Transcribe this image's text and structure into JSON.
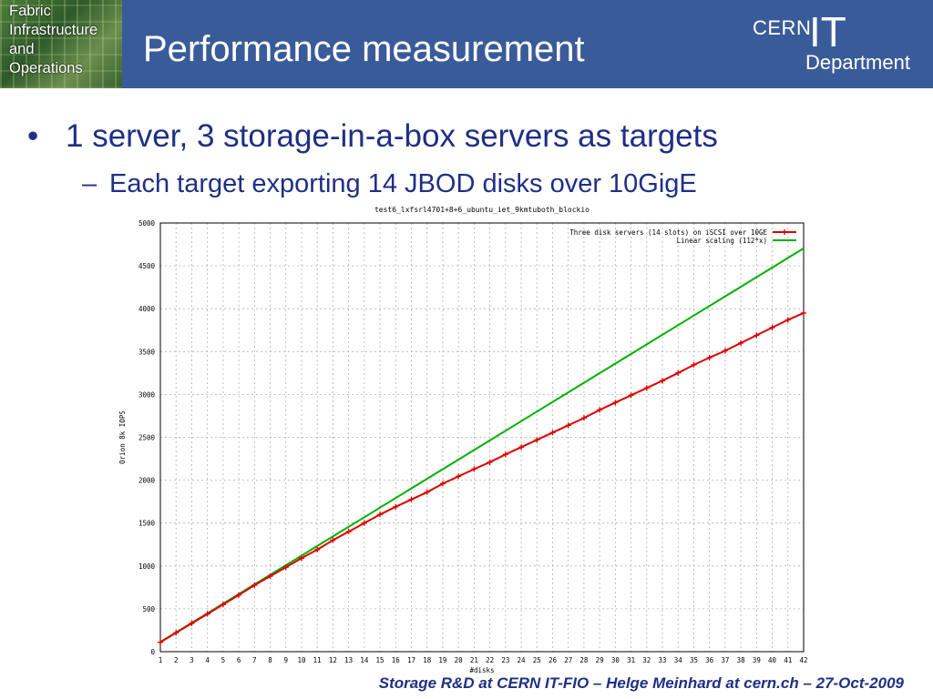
{
  "header": {
    "logo_lines": [
      "Fabric",
      "Infrastructure",
      "and",
      "Operations"
    ],
    "title": "Performance measurement",
    "org_logo": {
      "cern": "CERN",
      "it": "IT",
      "department": "Department"
    },
    "colors": {
      "bar": "#3a5b99"
    }
  },
  "bullets": {
    "level1": "1 server, 3 storage-in-a-box servers as targets",
    "level2": "Each target exporting 14 JBOD disks over 10GigE"
  },
  "footer": "Storage R&D at CERN IT-FIO – Helge Meinhard at cern.ch – 27-Oct-2009",
  "chart_data": {
    "type": "line",
    "title": "test6_lxfsrl4701+8+6_ubuntu_iet_9kmtuboth_blockio",
    "xlabel": "#disks",
    "ylabel": "Orion 8k IOPS",
    "xlim": [
      1,
      42
    ],
    "ylim": [
      0,
      5000
    ],
    "yticks": [
      0,
      500,
      1000,
      1500,
      2000,
      2500,
      3000,
      3500,
      4000,
      4500,
      5000
    ],
    "grid": true,
    "legend_position": "top-right",
    "x": [
      1,
      2,
      3,
      4,
      5,
      6,
      7,
      8,
      9,
      10,
      11,
      12,
      13,
      14,
      15,
      16,
      17,
      18,
      19,
      20,
      21,
      22,
      23,
      24,
      25,
      26,
      27,
      28,
      29,
      30,
      31,
      32,
      33,
      34,
      35,
      36,
      37,
      38,
      39,
      40,
      41,
      42
    ],
    "series": [
      {
        "name": "Three disk servers (14 slots) on iSCSI over 10GE",
        "color": "#e00000",
        "marker": "plus",
        "values": [
          110,
          220,
          330,
          440,
          550,
          660,
          775,
          880,
          985,
          1090,
          1190,
          1300,
          1400,
          1500,
          1600,
          1690,
          1775,
          1860,
          1960,
          2045,
          2130,
          2210,
          2300,
          2385,
          2470,
          2555,
          2640,
          2725,
          2820,
          2905,
          2990,
          3075,
          3160,
          3250,
          3345,
          3430,
          3510,
          3600,
          3690,
          3780,
          3870,
          3950
        ]
      },
      {
        "name": "Linear scaling (112*x)",
        "color": "#00b000",
        "marker": "none",
        "values": [
          112,
          224,
          336,
          448,
          560,
          672,
          784,
          896,
          1008,
          1120,
          1232,
          1344,
          1456,
          1568,
          1680,
          1792,
          1904,
          2016,
          2128,
          2240,
          2352,
          2464,
          2576,
          2688,
          2800,
          2912,
          3024,
          3136,
          3248,
          3360,
          3472,
          3584,
          3696,
          3808,
          3920,
          4032,
          4144,
          4256,
          4368,
          4480,
          4592,
          4704
        ]
      }
    ]
  }
}
